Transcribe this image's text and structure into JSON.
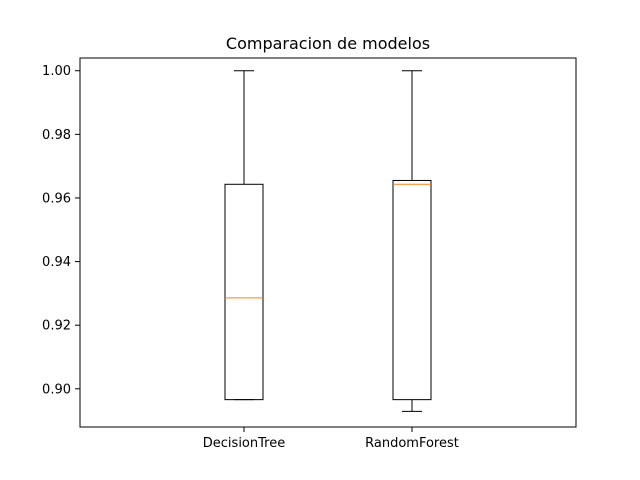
{
  "chart_data": {
    "type": "box",
    "title": "Comparacion de modelos",
    "xlabel": "",
    "ylabel": "",
    "ylim": [
      0.888,
      1.004
    ],
    "yticks": [
      0.9,
      0.92,
      0.94,
      0.96,
      0.98,
      1.0
    ],
    "ytick_labels": [
      "0.90",
      "0.92",
      "0.94",
      "0.96",
      "0.98",
      "1.00"
    ],
    "grid": false,
    "categories": [
      "DecisionTree",
      "RandomForest"
    ],
    "boxes": [
      {
        "name": "DecisionTree",
        "whisker_low": 0.8966,
        "q1": 0.8966,
        "median": 0.9286,
        "q3": 0.9643,
        "whisker_high": 1.0
      },
      {
        "name": "RandomForest",
        "whisker_low": 0.8929,
        "q1": 0.8966,
        "median": 0.9643,
        "q3": 0.9655,
        "whisker_high": 1.0
      }
    ],
    "colors": {
      "box": "#000000",
      "median": "#ff7f0e",
      "axes": "#000000"
    }
  }
}
